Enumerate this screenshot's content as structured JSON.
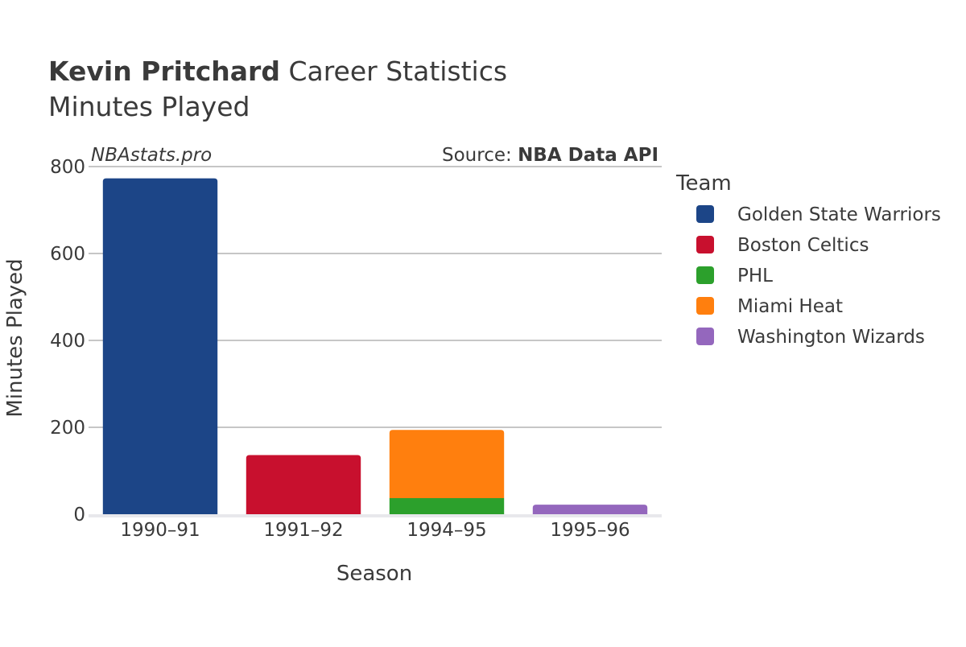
{
  "header": {
    "title_bold": "Kevin Pritchard",
    "title_rest": " Career Statistics",
    "subtitle": "Minutes Played"
  },
  "watermark": "NBAstats.pro",
  "source": {
    "prefix": "Source: ",
    "name": "NBA Data API"
  },
  "chart_data": {
    "type": "bar",
    "stacked": true,
    "title": "Kevin Pritchard Career Statistics",
    "subtitle": "Minutes Played",
    "xlabel": "Season",
    "ylabel": "Minutes Played",
    "categories": [
      "1990–91",
      "1991–92",
      "1994–95",
      "1995–96"
    ],
    "ylim": [
      0,
      800
    ],
    "yticks": [
      0,
      200,
      400,
      600,
      800
    ],
    "grid": true,
    "legend_title": "Team",
    "legend_position": "right",
    "series": [
      {
        "name": "Golden State Warriors",
        "color": "#1c4587",
        "values": [
          773,
          0,
          0,
          0
        ]
      },
      {
        "name": "Boston Celtics",
        "color": "#c8102e",
        "values": [
          0,
          136,
          0,
          0
        ]
      },
      {
        "name": "PHL",
        "color": "#2ca02c",
        "values": [
          0,
          0,
          37,
          0
        ]
      },
      {
        "name": "Miami Heat",
        "color": "#ff7f0e",
        "values": [
          0,
          0,
          157,
          0
        ]
      },
      {
        "name": "Washington Wizards",
        "color": "#9467bd",
        "values": [
          0,
          0,
          0,
          22
        ]
      }
    ]
  }
}
